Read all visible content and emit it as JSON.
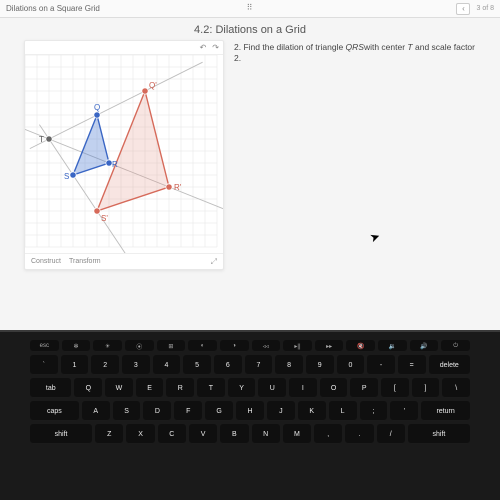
{
  "topbar": {
    "breadcrumb": "Dilations on a Square Grid",
    "page_indicator": "3 of 8"
  },
  "lesson": {
    "title": "4.2: Dilations on a Grid"
  },
  "question": {
    "number": "2.",
    "text_prefix": "Find the dilation of triangle ",
    "tri_name": "QRS",
    "text_mid": "with center ",
    "center_name": "T",
    "text_mid2": " and scale factor ",
    "factor": "2",
    "text_end": "."
  },
  "canvas": {
    "construct_label": "Construct",
    "transform_label": "Transform",
    "grid": {
      "spacing": 12,
      "cols": 16,
      "rows": 16,
      "color": "#e6e6e6"
    },
    "ray_color": "#bdbdbd",
    "original": {
      "stroke": "#3a66c4",
      "fill": "#4e7ad1",
      "fill_opacity": 0.35,
      "points": {
        "Q": [
          72,
          60
        ],
        "R": [
          84,
          108
        ],
        "S": [
          48,
          120
        ]
      },
      "label_color": "#3a66c4"
    },
    "image": {
      "stroke": "#d66a5a",
      "fill": "#e08a7c",
      "fill_opacity": 0.22,
      "points": {
        "Qp": [
          120,
          36
        ],
        "Rp": [
          144,
          132
        ],
        "Sp": [
          72,
          156
        ]
      },
      "label_color": "#c9594a"
    },
    "center": {
      "T": [
        24,
        84
      ],
      "label": "T",
      "label_color": "#555"
    },
    "point_radius": 3.2
  },
  "keyboard": {
    "fn": [
      "esc",
      "✻",
      "☀",
      "⦿",
      "⊞",
      "◐",
      "◑",
      "◃◃",
      "▸||",
      "▸▸",
      "🔇",
      "🔉",
      "🔊",
      "⏻"
    ],
    "row1": [
      "`",
      "1",
      "2",
      "3",
      "4",
      "5",
      "6",
      "7",
      "8",
      "9",
      "0",
      "-",
      "=",
      "delete"
    ],
    "row2": [
      "tab",
      "Q",
      "W",
      "E",
      "R",
      "T",
      "Y",
      "U",
      "I",
      "O",
      "P",
      "[",
      "]",
      "\\"
    ],
    "row3": [
      "caps",
      "A",
      "S",
      "D",
      "F",
      "G",
      "H",
      "J",
      "K",
      "L",
      ";",
      "'",
      "return"
    ],
    "row4": [
      "shift",
      "Z",
      "X",
      "C",
      "V",
      "B",
      "N",
      "M",
      ",",
      ".",
      "/",
      "shift"
    ]
  }
}
